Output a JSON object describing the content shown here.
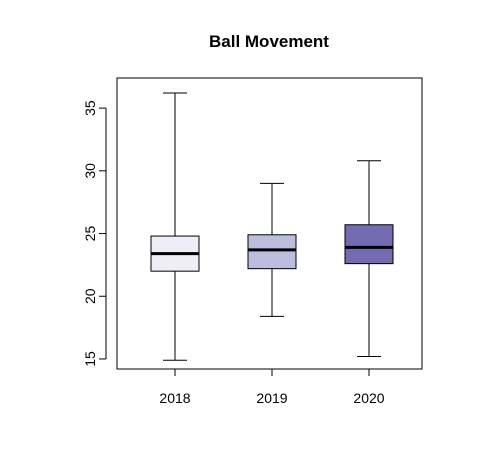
{
  "chart_data": {
    "type": "boxplot",
    "title": "Ball Movement",
    "xlabel": "",
    "ylabel": "",
    "categories": [
      "2018",
      "2019",
      "2020"
    ],
    "ylim": [
      14.2,
      37.4
    ],
    "yticks": [
      15,
      20,
      25,
      30,
      35
    ],
    "grid": false,
    "legend": "none",
    "boxes": [
      {
        "category": "2018",
        "min": 14.9,
        "q1": 22.0,
        "median": 23.4,
        "q3": 24.8,
        "max": 36.2,
        "color": "#efedf5"
      },
      {
        "category": "2019",
        "min": 18.4,
        "q1": 22.2,
        "median": 23.7,
        "q3": 24.9,
        "max": 29.0,
        "color": "#bcbddc"
      },
      {
        "category": "2020",
        "min": 15.2,
        "q1": 22.6,
        "median": 23.9,
        "q3": 25.7,
        "max": 30.8,
        "color": "#756bb1"
      }
    ]
  }
}
